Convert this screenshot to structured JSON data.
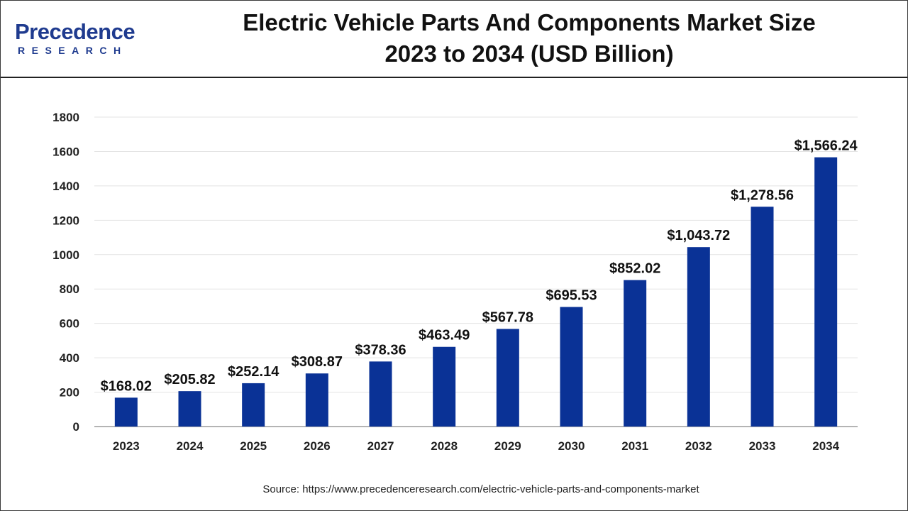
{
  "header": {
    "logo_main": "Precedence",
    "logo_sub": "RESEARCH",
    "title_line1": "Electric Vehicle Parts And Components Market Size",
    "title_line2": "2023 to 2034 (USD Billion)"
  },
  "colors": {
    "bar": "#0a3296",
    "grid": "#e3e3e3",
    "axis": "#888888",
    "logo": "#1f3b8f"
  },
  "chart_data": {
    "type": "bar",
    "title": "Electric Vehicle Parts And Components Market Size 2023 to 2034 (USD Billion)",
    "categories": [
      "2023",
      "2024",
      "2025",
      "2026",
      "2027",
      "2028",
      "2029",
      "2030",
      "2031",
      "2032",
      "2033",
      "2034"
    ],
    "values": [
      168.02,
      205.82,
      252.14,
      308.87,
      378.36,
      463.49,
      567.78,
      695.53,
      852.02,
      1043.72,
      1278.56,
      1566.24
    ],
    "data_labels": [
      "$168.02",
      "$205.82",
      "$252.14",
      "$308.87",
      "$378.36",
      "$463.49",
      "$567.78",
      "$695.53",
      "$852.02",
      "$1,043.72",
      "$1,278.56",
      "$1,566.24"
    ],
    "yticks": [
      "0",
      "200",
      "400",
      "600",
      "800",
      "1000",
      "1200",
      "1400",
      "1600",
      "1800"
    ],
    "ylim": [
      0,
      1800
    ],
    "xlabel": "",
    "ylabel": "",
    "grid": true,
    "legend": "none"
  },
  "footer": {
    "source": "Source: https://www.precedenceresearch.com/electric-vehicle-parts-and-components-market"
  }
}
